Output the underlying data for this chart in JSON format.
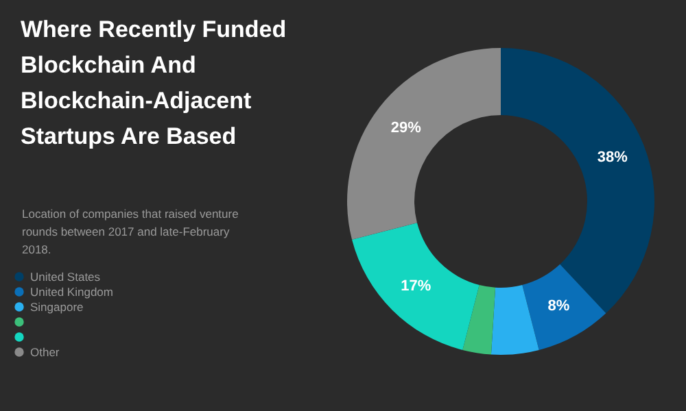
{
  "chart_data": {
    "type": "donut",
    "title": "Where Recently Funded Blockchain And Blockchain-Adjacent Startups Are Based",
    "subtitle": "Location of companies that raised venture rounds between 2017 and late-February 2018.",
    "categories": [
      "United States",
      "United Kingdom",
      "Singapore",
      null,
      null,
      "Other"
    ],
    "values": [
      38,
      8,
      5,
      3,
      17,
      29
    ],
    "colors": [
      "#003f66",
      "#0a6fb8",
      "#2ab0f0",
      "#3cbf7a",
      "#14d6c0",
      "#8a8a8a"
    ],
    "value_labels": [
      "38%",
      "8%",
      null,
      null,
      "17%",
      "29%"
    ],
    "legend": "bottom left"
  }
}
